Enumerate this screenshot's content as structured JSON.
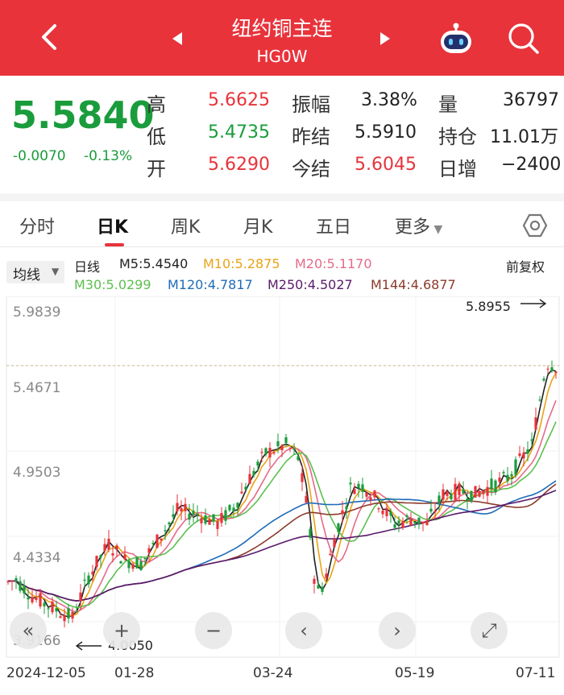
{
  "header": {
    "title": "纽约铜主连",
    "code": "HG0W",
    "bg_color": "#e8333b"
  },
  "quote": {
    "last_price": "5.5840",
    "change": "-0.0070",
    "change_pct": "-0.13%",
    "high_label": "高",
    "high": "5.6625",
    "low_label": "低",
    "low": "5.4735",
    "open_label": "开",
    "open": "5.6290",
    "amplitude_label": "振幅",
    "amplitude": "3.38%",
    "prev_settle_label": "昨结",
    "prev_settle": "5.5910",
    "settle_label": "今结",
    "settle": "5.6045",
    "volume_label": "量",
    "volume": "36797",
    "open_interest_label": "持仓",
    "open_interest": "11.01万",
    "daily_increase_label": "日增",
    "daily_increase": "−2400"
  },
  "tabs": [
    "分时",
    "日K",
    "周K",
    "月K",
    "五日",
    "更多"
  ],
  "active_tab": "日K",
  "indicators": {
    "ma_button": "均线",
    "period": "日线",
    "adjust": "前复权",
    "m5": "M5:5.4540",
    "m10": "M10:5.2875",
    "m20": "M20:5.1170",
    "m30": "M30:5.0299",
    "m120": "M120:4.7817",
    "m250": "M250:4.5027",
    "m144": "M144:4.6877",
    "colors": {
      "m5": "#222222",
      "m10": "#e8a317",
      "m20": "#e66a8a",
      "m30": "#5cbf4f",
      "m120": "#1e6bb8",
      "m250": "#5a1a6b",
      "m144": "#8b3a2a"
    }
  },
  "chart": {
    "y_ticks": [
      "5.9839",
      "5.4671",
      "4.9503",
      "4.4334",
      "3.9166"
    ],
    "x_ticks": [
      "2024-12-05",
      "01-28",
      "03-24",
      "05-19",
      "07-11"
    ],
    "max_label": "5.8955",
    "min_label": "4.0050",
    "up_color": "#e8333b",
    "down_color": "#1a9c3c"
  },
  "controls": [
    "«",
    "+",
    "−",
    "‹",
    "›",
    "⤢"
  ]
}
